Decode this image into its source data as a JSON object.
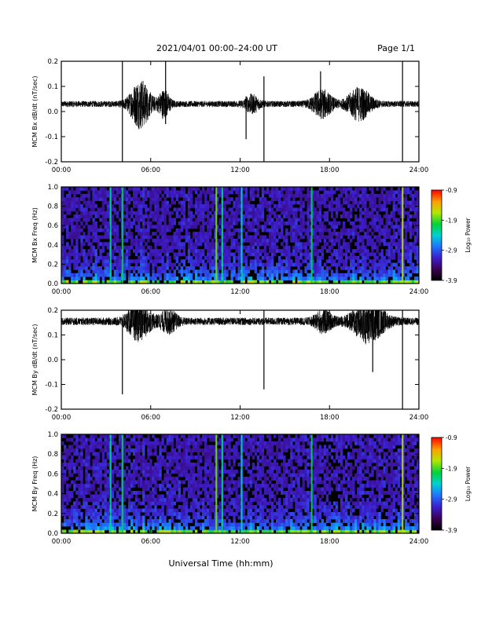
{
  "header": {
    "title": "2021/04/01  00:00–24:00 UT",
    "page": "Page 1/1"
  },
  "footer": {
    "xlabel": "Universal Time (hh:mm)"
  },
  "chart_data": [
    {
      "type": "line",
      "ylabel": "MCM Bx dB/dt (nT/sec)",
      "xlim": [
        0,
        24
      ],
      "ylim": [
        -0.2,
        0.2
      ],
      "x_ticks": [
        "00:00",
        "06:00",
        "12:00",
        "18:00",
        "24:00"
      ],
      "y_ticks": [
        "-0.2",
        "-0.1",
        "0.0",
        "0.1",
        "0.2"
      ],
      "baseline": 0.03,
      "noise_amplitude": 0.012,
      "bursts": [
        {
          "x": 5.3,
          "width": 0.7,
          "amp": 0.09
        },
        {
          "x": 6.9,
          "width": 0.4,
          "amp": 0.05
        },
        {
          "x": 12.8,
          "width": 0.5,
          "amp": 0.03
        },
        {
          "x": 17.5,
          "width": 0.7,
          "amp": 0.05
        },
        {
          "x": 20.0,
          "width": 0.8,
          "amp": 0.06
        }
      ],
      "spikes": [
        {
          "x": 4.1,
          "min": -0.2,
          "max": 0.2
        },
        {
          "x": 7.0,
          "min": -0.05,
          "max": 0.2
        },
        {
          "x": 12.4,
          "min": -0.11,
          "max": 0.06
        },
        {
          "x": 13.6,
          "min": -0.2,
          "max": 0.14
        },
        {
          "x": 17.4,
          "min": -0.02,
          "max": 0.16
        },
        {
          "x": 22.9,
          "min": -0.2,
          "max": 0.2
        }
      ]
    },
    {
      "type": "heatmap",
      "ylabel": "MCM Bx Freq (Hz)",
      "xlim": [
        0,
        24
      ],
      "ylim": [
        0,
        1
      ],
      "x_ticks": [
        "00:00",
        "06:00",
        "12:00",
        "18:00",
        "24:00"
      ],
      "y_ticks": [
        "0.0",
        "0.2",
        "0.4",
        "0.6",
        "0.8",
        "1.0"
      ],
      "colorbar": {
        "label": "Log₁₀ Power",
        "range": [
          -3.9,
          -0.9
        ],
        "ticks": [
          "-0.9",
          "-1.9",
          "-2.9",
          "-3.9"
        ]
      },
      "bright_columns": [
        {
          "x": 3.3,
          "level": 0.55
        },
        {
          "x": 4.1,
          "level": 0.6
        },
        {
          "x": 10.4,
          "level": 0.7
        },
        {
          "x": 10.8,
          "level": 0.55
        },
        {
          "x": 12.1,
          "level": 0.5
        },
        {
          "x": 16.8,
          "level": 0.6
        },
        {
          "x": 22.9,
          "level": 0.75
        }
      ]
    },
    {
      "type": "line",
      "ylabel": "MCM By dB/dt (nT/sec)",
      "xlim": [
        0,
        24
      ],
      "ylim": [
        -0.2,
        0.2
      ],
      "x_ticks": [
        "00:00",
        "06:00",
        "12:00",
        "18:00",
        "24:00"
      ],
      "y_ticks": [
        "-0.2",
        "-0.1",
        "0.0",
        "0.1",
        "0.2"
      ],
      "baseline": 0.155,
      "noise_amplitude": 0.015,
      "bursts": [
        {
          "x": 5.2,
          "width": 0.8,
          "amp": 0.07
        },
        {
          "x": 7.2,
          "width": 0.6,
          "amp": 0.04
        },
        {
          "x": 17.6,
          "width": 0.6,
          "amp": 0.04
        },
        {
          "x": 20.6,
          "width": 1.1,
          "amp": 0.08
        }
      ],
      "spikes": [
        {
          "x": 4.1,
          "min": -0.14,
          "max": 0.16
        },
        {
          "x": 13.6,
          "min": -0.12,
          "max": 0.2
        },
        {
          "x": 20.9,
          "min": -0.05,
          "max": 0.2
        },
        {
          "x": 22.9,
          "min": -0.2,
          "max": 0.2
        }
      ]
    },
    {
      "type": "heatmap",
      "ylabel": "MCM By Freq (Hz)",
      "xlim": [
        0,
        24
      ],
      "ylim": [
        0,
        1
      ],
      "x_ticks": [
        "00:00",
        "06:00",
        "12:00",
        "18:00",
        "24:00"
      ],
      "y_ticks": [
        "0.0",
        "0.2",
        "0.4",
        "0.6",
        "0.8",
        "1.0"
      ],
      "colorbar": {
        "label": "Log₁₀ Power",
        "range": [
          -3.9,
          -0.9
        ],
        "ticks": [
          "-0.9",
          "-1.9",
          "-2.9",
          "-3.9"
        ]
      },
      "bright_columns": [
        {
          "x": 3.3,
          "level": 0.55
        },
        {
          "x": 4.1,
          "level": 0.6
        },
        {
          "x": 10.4,
          "level": 0.7
        },
        {
          "x": 10.8,
          "level": 0.55
        },
        {
          "x": 12.1,
          "level": 0.5
        },
        {
          "x": 16.8,
          "level": 0.6
        },
        {
          "x": 22.9,
          "level": 0.75
        }
      ]
    }
  ]
}
